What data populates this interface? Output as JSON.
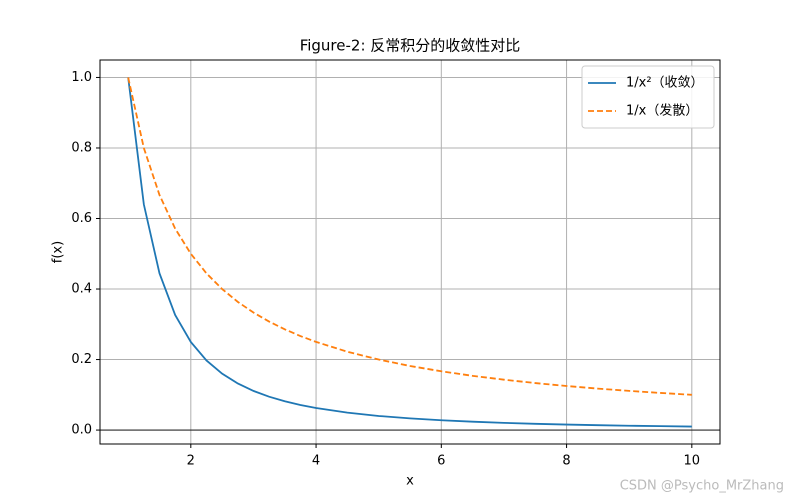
{
  "chart_data": {
    "type": "line",
    "title": "Figure-2: 反常积分的收敛性对比",
    "x_label": "x",
    "y_label": "f(x)",
    "x": [
      1,
      1.25,
      1.5,
      1.75,
      2,
      2.25,
      2.5,
      2.75,
      3,
      3.25,
      3.5,
      3.75,
      4,
      4.5,
      5,
      5.5,
      6,
      6.5,
      7,
      7.5,
      8,
      8.5,
      9,
      9.5,
      10
    ],
    "series": [
      {
        "name": "1/x²（收敛）",
        "color": "#1f77b4",
        "style": "solid",
        "values": [
          1,
          0.64,
          0.4444,
          0.3265,
          0.25,
          0.1975,
          0.16,
          0.1322,
          0.1111,
          0.0947,
          0.0816,
          0.0711,
          0.0625,
          0.0494,
          0.04,
          0.0331,
          0.0278,
          0.0237,
          0.0204,
          0.0178,
          0.0156,
          0.0138,
          0.0123,
          0.0111,
          0.01
        ]
      },
      {
        "name": "1/x（发散）",
        "color": "#ff7f0e",
        "style": "dashed",
        "values": [
          1,
          0.8,
          0.6667,
          0.5714,
          0.5,
          0.4444,
          0.4,
          0.3636,
          0.3333,
          0.3077,
          0.2857,
          0.2667,
          0.25,
          0.2222,
          0.2,
          0.1818,
          0.1667,
          0.1538,
          0.1429,
          0.1333,
          0.125,
          0.1176,
          0.1111,
          0.1053,
          0.1
        ]
      }
    ],
    "xlim": [
      0.55,
      10.45
    ],
    "ylim": [
      -0.0395,
      1.0495
    ],
    "xticks": [
      2,
      4,
      6,
      8,
      10
    ],
    "yticks": [
      {
        "value": 0,
        "label": "0.0"
      },
      0.2,
      0.4,
      0.6,
      0.8,
      {
        "value": 1,
        "label": "1.0"
      }
    ],
    "reference_line": 0,
    "grid": true,
    "legend": "upper right",
    "watermark": "CSDN @Psycho_MrZhang"
  }
}
